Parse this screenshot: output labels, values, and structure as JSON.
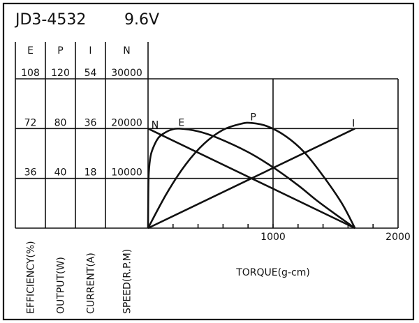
{
  "chart_data": {
    "type": "line",
    "title": "JD3-4532",
    "voltage": "9.6V",
    "xlabel": "TORQUE(g-cm)",
    "xlim": [
      0,
      2000
    ],
    "x_ticks": [
      "1000",
      "2000"
    ],
    "x_minor_step": 200,
    "grid": true,
    "axes": [
      {
        "key": "E",
        "label": "EFFICIENCY(%)",
        "ticks": [
          "108",
          "72",
          "36"
        ],
        "max": 108
      },
      {
        "key": "P",
        "label": "OUTPUT(W)",
        "ticks": [
          "120",
          "80",
          "40"
        ],
        "max": 120
      },
      {
        "key": "I",
        "label": "CURRENT(A)",
        "ticks": [
          "54",
          "36",
          "18"
        ],
        "max": 54
      },
      {
        "key": "N",
        "label": "SPEED(R.P.M)",
        "ticks": [
          "30000",
          "20000",
          "10000"
        ],
        "max": 30000
      }
    ],
    "series": [
      {
        "name": "N",
        "axis": "N",
        "x": [
          0,
          1655
        ],
        "y": [
          20000,
          0
        ]
      },
      {
        "name": "I",
        "axis": "I",
        "x": [
          0,
          1655
        ],
        "y": [
          0,
          36
        ]
      },
      {
        "name": "P",
        "axis": "P",
        "x": [
          0,
          150,
          300,
          450,
          600,
          750,
          830,
          950,
          1100,
          1250,
          1400,
          1550,
          1655
        ],
        "y": [
          0,
          28,
          51,
          68,
          79,
          84,
          84.5,
          82,
          74,
          61,
          42,
          20,
          0
        ]
      },
      {
        "name": "E",
        "axis": "E",
        "x": [
          0,
          2,
          6,
          20,
          45,
          80,
          117,
          180,
          250,
          400,
          550,
          800,
          1000,
          1200,
          1350,
          1500,
          1655
        ],
        "y": [
          0,
          25,
          40,
          52,
          59,
          65,
          68,
          71,
          72,
          70,
          65.5,
          55,
          44,
          31,
          20,
          10,
          0
        ]
      }
    ]
  }
}
